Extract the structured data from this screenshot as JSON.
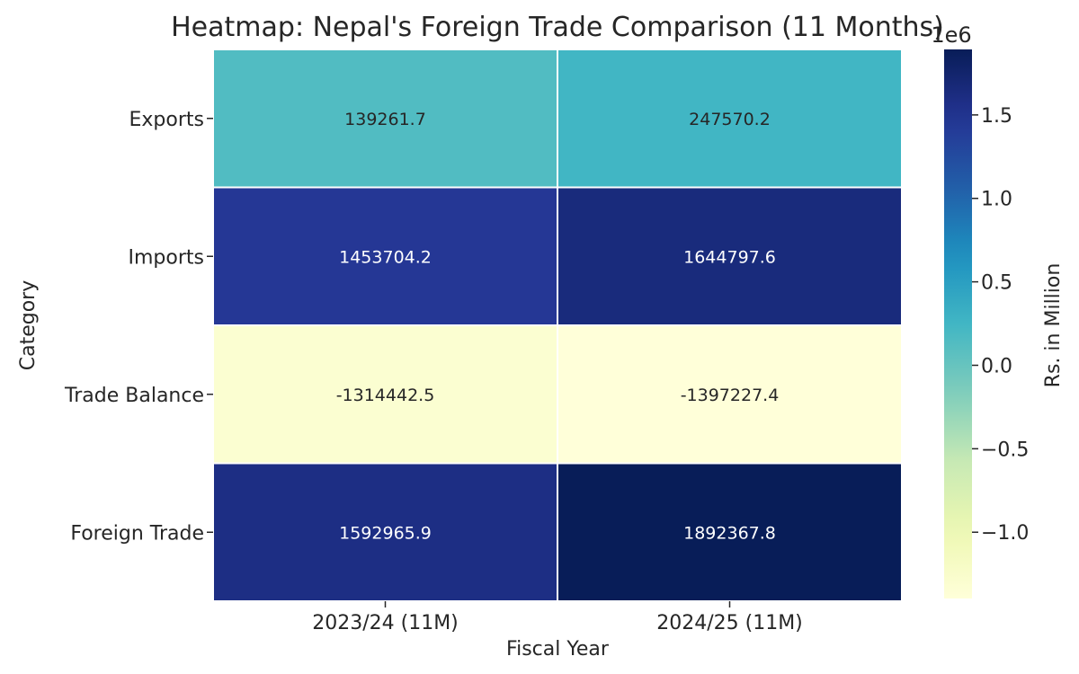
{
  "chart_data": {
    "type": "heatmap",
    "title": "Heatmap: Nepal's Foreign Trade Comparison (11 Months)",
    "xlabel": "Fiscal Year",
    "ylabel": "Category",
    "x_categories": [
      "2023/24 (11M)",
      "2024/25 (11M)"
    ],
    "y_categories": [
      "Exports",
      "Imports",
      "Trade Balance",
      "Foreign Trade"
    ],
    "values": [
      [
        139261.7,
        247570.2
      ],
      [
        1453704.2,
        1644797.6
      ],
      [
        -1314442.5,
        -1397227.4
      ],
      [
        1592965.9,
        1892367.8
      ]
    ],
    "value_labels": [
      [
        "139261.7",
        "247570.2"
      ],
      [
        "1453704.2",
        "1644797.6"
      ],
      [
        "-1314442.5",
        "-1397227.4"
      ],
      [
        "1592965.9",
        "1892367.8"
      ]
    ],
    "colorbar": {
      "label": "Rs. in Million",
      "multiplier_label": "1e6",
      "colormap": "YlGnBu",
      "vmin": -1397227.4,
      "vmax": 1892367.8,
      "ticks": [
        -1.0,
        -0.5,
        0.0,
        0.5,
        1.0,
        1.5
      ],
      "tick_labels": [
        "−1.0",
        "−0.5",
        "0.0",
        "0.5",
        "1.0",
        "1.5"
      ],
      "scale": 1000000
    },
    "legend": "colorbar-right"
  }
}
